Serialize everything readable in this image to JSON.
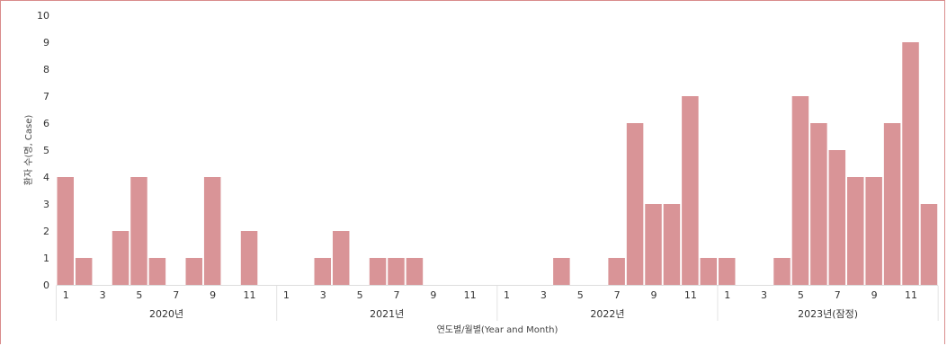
{
  "chart_data": {
    "type": "bar",
    "ylabel": "환자 수(명, Case)",
    "xlabel": "연도별/월별(Year and Month)",
    "ylim": [
      0,
      10
    ],
    "yticks": [
      "0",
      "1",
      "2",
      "3",
      "4",
      "5",
      "6",
      "7",
      "8",
      "9",
      "10"
    ],
    "bar_color": "#d99497",
    "years": [
      {
        "label": "2020년",
        "values": [
          4,
          1,
          0,
          2,
          4,
          1,
          0,
          1,
          4,
          0,
          2,
          0
        ]
      },
      {
        "label": "2021년",
        "values": [
          0,
          0,
          1,
          2,
          0,
          1,
          1,
          1,
          0,
          0,
          0,
          0
        ]
      },
      {
        "label": "2022년",
        "values": [
          0,
          0,
          0,
          1,
          0,
          0,
          1,
          6,
          3,
          3,
          7,
          1
        ]
      },
      {
        "label": "2023년(잠정)",
        "values": [
          1,
          0,
          0,
          1,
          7,
          6,
          5,
          4,
          4,
          6,
          9,
          3
        ]
      }
    ],
    "month_tick_labels": [
      "1",
      "3",
      "5",
      "7",
      "9",
      "11"
    ]
  }
}
